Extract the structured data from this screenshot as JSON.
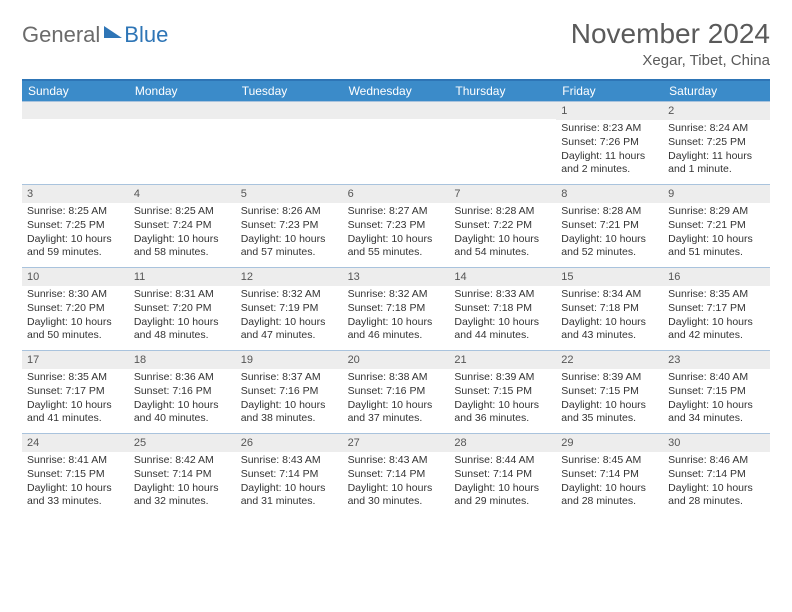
{
  "logo": {
    "part1": "General",
    "part2": "Blue"
  },
  "title": "November 2024",
  "location": "Xegar, Tibet, China",
  "colors": {
    "header_bar": "#3b8bc9",
    "top_border": "#2e75b6",
    "week_divider": "#a9c3dd",
    "daynum_bg": "#ededed",
    "text": "#333333",
    "title_text": "#5a5a5a"
  },
  "weekdays": [
    "Sunday",
    "Monday",
    "Tuesday",
    "Wednesday",
    "Thursday",
    "Friday",
    "Saturday"
  ],
  "weeks": [
    [
      {
        "n": "",
        "sr": "",
        "ss": "",
        "dl": ""
      },
      {
        "n": "",
        "sr": "",
        "ss": "",
        "dl": ""
      },
      {
        "n": "",
        "sr": "",
        "ss": "",
        "dl": ""
      },
      {
        "n": "",
        "sr": "",
        "ss": "",
        "dl": ""
      },
      {
        "n": "",
        "sr": "",
        "ss": "",
        "dl": ""
      },
      {
        "n": "1",
        "sr": "Sunrise: 8:23 AM",
        "ss": "Sunset: 7:26 PM",
        "dl": "Daylight: 11 hours and 2 minutes."
      },
      {
        "n": "2",
        "sr": "Sunrise: 8:24 AM",
        "ss": "Sunset: 7:25 PM",
        "dl": "Daylight: 11 hours and 1 minute."
      }
    ],
    [
      {
        "n": "3",
        "sr": "Sunrise: 8:25 AM",
        "ss": "Sunset: 7:25 PM",
        "dl": "Daylight: 10 hours and 59 minutes."
      },
      {
        "n": "4",
        "sr": "Sunrise: 8:25 AM",
        "ss": "Sunset: 7:24 PM",
        "dl": "Daylight: 10 hours and 58 minutes."
      },
      {
        "n": "5",
        "sr": "Sunrise: 8:26 AM",
        "ss": "Sunset: 7:23 PM",
        "dl": "Daylight: 10 hours and 57 minutes."
      },
      {
        "n": "6",
        "sr": "Sunrise: 8:27 AM",
        "ss": "Sunset: 7:23 PM",
        "dl": "Daylight: 10 hours and 55 minutes."
      },
      {
        "n": "7",
        "sr": "Sunrise: 8:28 AM",
        "ss": "Sunset: 7:22 PM",
        "dl": "Daylight: 10 hours and 54 minutes."
      },
      {
        "n": "8",
        "sr": "Sunrise: 8:28 AM",
        "ss": "Sunset: 7:21 PM",
        "dl": "Daylight: 10 hours and 52 minutes."
      },
      {
        "n": "9",
        "sr": "Sunrise: 8:29 AM",
        "ss": "Sunset: 7:21 PM",
        "dl": "Daylight: 10 hours and 51 minutes."
      }
    ],
    [
      {
        "n": "10",
        "sr": "Sunrise: 8:30 AM",
        "ss": "Sunset: 7:20 PM",
        "dl": "Daylight: 10 hours and 50 minutes."
      },
      {
        "n": "11",
        "sr": "Sunrise: 8:31 AM",
        "ss": "Sunset: 7:20 PM",
        "dl": "Daylight: 10 hours and 48 minutes."
      },
      {
        "n": "12",
        "sr": "Sunrise: 8:32 AM",
        "ss": "Sunset: 7:19 PM",
        "dl": "Daylight: 10 hours and 47 minutes."
      },
      {
        "n": "13",
        "sr": "Sunrise: 8:32 AM",
        "ss": "Sunset: 7:18 PM",
        "dl": "Daylight: 10 hours and 46 minutes."
      },
      {
        "n": "14",
        "sr": "Sunrise: 8:33 AM",
        "ss": "Sunset: 7:18 PM",
        "dl": "Daylight: 10 hours and 44 minutes."
      },
      {
        "n": "15",
        "sr": "Sunrise: 8:34 AM",
        "ss": "Sunset: 7:18 PM",
        "dl": "Daylight: 10 hours and 43 minutes."
      },
      {
        "n": "16",
        "sr": "Sunrise: 8:35 AM",
        "ss": "Sunset: 7:17 PM",
        "dl": "Daylight: 10 hours and 42 minutes."
      }
    ],
    [
      {
        "n": "17",
        "sr": "Sunrise: 8:35 AM",
        "ss": "Sunset: 7:17 PM",
        "dl": "Daylight: 10 hours and 41 minutes."
      },
      {
        "n": "18",
        "sr": "Sunrise: 8:36 AM",
        "ss": "Sunset: 7:16 PM",
        "dl": "Daylight: 10 hours and 40 minutes."
      },
      {
        "n": "19",
        "sr": "Sunrise: 8:37 AM",
        "ss": "Sunset: 7:16 PM",
        "dl": "Daylight: 10 hours and 38 minutes."
      },
      {
        "n": "20",
        "sr": "Sunrise: 8:38 AM",
        "ss": "Sunset: 7:16 PM",
        "dl": "Daylight: 10 hours and 37 minutes."
      },
      {
        "n": "21",
        "sr": "Sunrise: 8:39 AM",
        "ss": "Sunset: 7:15 PM",
        "dl": "Daylight: 10 hours and 36 minutes."
      },
      {
        "n": "22",
        "sr": "Sunrise: 8:39 AM",
        "ss": "Sunset: 7:15 PM",
        "dl": "Daylight: 10 hours and 35 minutes."
      },
      {
        "n": "23",
        "sr": "Sunrise: 8:40 AM",
        "ss": "Sunset: 7:15 PM",
        "dl": "Daylight: 10 hours and 34 minutes."
      }
    ],
    [
      {
        "n": "24",
        "sr": "Sunrise: 8:41 AM",
        "ss": "Sunset: 7:15 PM",
        "dl": "Daylight: 10 hours and 33 minutes."
      },
      {
        "n": "25",
        "sr": "Sunrise: 8:42 AM",
        "ss": "Sunset: 7:14 PM",
        "dl": "Daylight: 10 hours and 32 minutes."
      },
      {
        "n": "26",
        "sr": "Sunrise: 8:43 AM",
        "ss": "Sunset: 7:14 PM",
        "dl": "Daylight: 10 hours and 31 minutes."
      },
      {
        "n": "27",
        "sr": "Sunrise: 8:43 AM",
        "ss": "Sunset: 7:14 PM",
        "dl": "Daylight: 10 hours and 30 minutes."
      },
      {
        "n": "28",
        "sr": "Sunrise: 8:44 AM",
        "ss": "Sunset: 7:14 PM",
        "dl": "Daylight: 10 hours and 29 minutes."
      },
      {
        "n": "29",
        "sr": "Sunrise: 8:45 AM",
        "ss": "Sunset: 7:14 PM",
        "dl": "Daylight: 10 hours and 28 minutes."
      },
      {
        "n": "30",
        "sr": "Sunrise: 8:46 AM",
        "ss": "Sunset: 7:14 PM",
        "dl": "Daylight: 10 hours and 28 minutes."
      }
    ]
  ]
}
